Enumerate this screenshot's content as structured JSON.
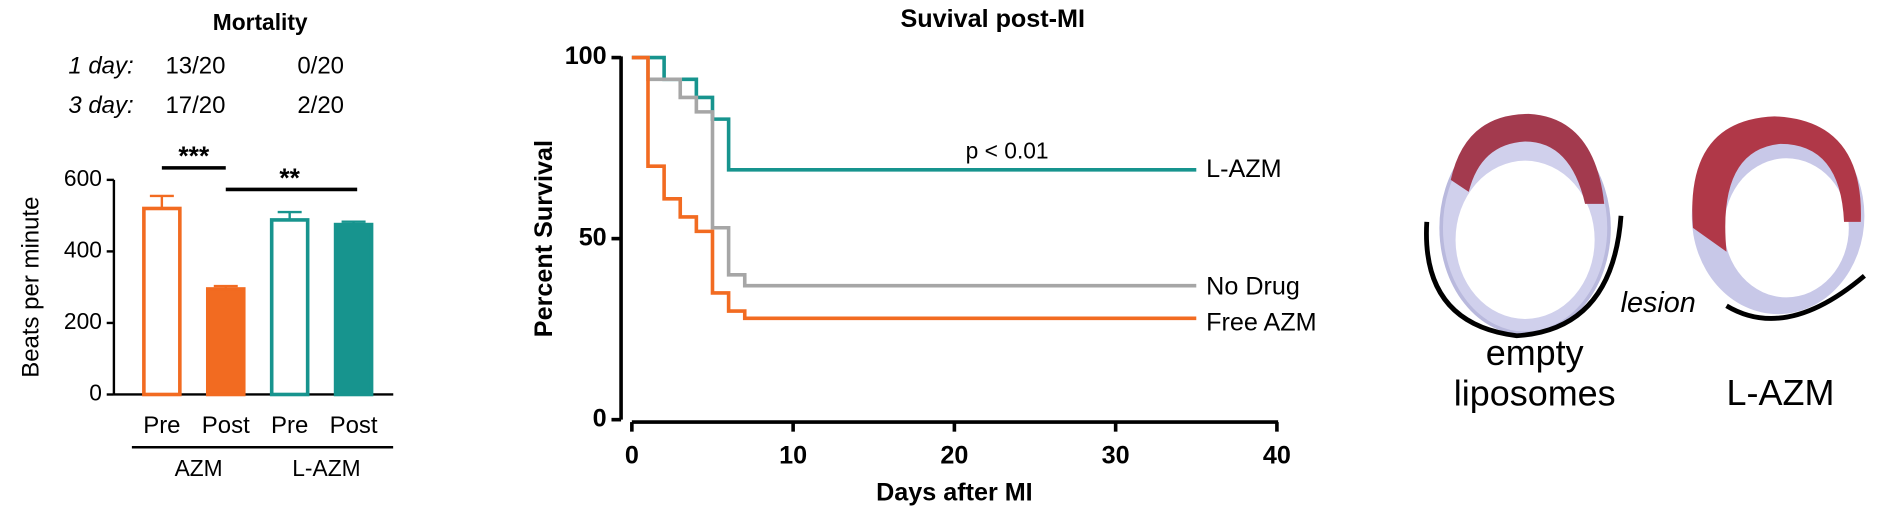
{
  "mortality": {
    "title": "Mortality",
    "colors": [
      "#f26b21",
      "#17948e"
    ],
    "rows": [
      {
        "label": "1 day:",
        "values": [
          "13/20",
          "0/20"
        ]
      },
      {
        "label": "3 day:",
        "values": [
          "17/20",
          "2/20"
        ]
      }
    ]
  },
  "chart_data": [
    {
      "type": "bar",
      "ylabel": "Beats per minute",
      "categories": [
        "Pre",
        "Post",
        "Pre",
        "Post"
      ],
      "groups": [
        "AZM",
        "L-AZM"
      ],
      "values": [
        520,
        295,
        488,
        475
      ],
      "errors": [
        35,
        8,
        22,
        8
      ],
      "colors": [
        "#f26b21",
        "#f26b21",
        "#17948e",
        "#17948e"
      ],
      "filled": [
        false,
        true,
        false,
        true
      ],
      "ylim": [
        0,
        600
      ],
      "yticks": [
        0,
        200,
        400,
        600
      ],
      "annotations": [
        {
          "text": "***",
          "between": [
            0,
            1
          ]
        },
        {
          "text": "**",
          "between": [
            1,
            3
          ]
        }
      ]
    },
    {
      "type": "line",
      "step": true,
      "title": "Suvival post-MI",
      "xlabel": "Days after MI",
      "ylabel": "Percent Survival",
      "annotation": "p < 0.01",
      "xlim": [
        0,
        40
      ],
      "xticks": [
        0,
        10,
        20,
        30,
        40
      ],
      "ylim": [
        0,
        100
      ],
      "yticks": [
        0,
        50,
        100
      ],
      "series": [
        {
          "name": "L-AZM",
          "color": "#17948e",
          "x": [
            0,
            2,
            4,
            5,
            6,
            35
          ],
          "values": [
            100,
            94,
            89,
            83,
            69,
            69
          ]
        },
        {
          "name": "No Drug",
          "color": "#a6a6a6",
          "x": [
            0,
            1,
            3,
            4,
            5,
            6,
            7,
            35
          ],
          "values": [
            100,
            94,
            89,
            85,
            53,
            40,
            37,
            37
          ]
        },
        {
          "name": "Free AZM",
          "color": "#f26b21",
          "x": [
            0,
            1,
            2,
            3,
            4,
            5,
            6,
            7,
            35
          ],
          "values": [
            100,
            70,
            61,
            56,
            52,
            35,
            30,
            28,
            28
          ]
        }
      ]
    }
  ],
  "histology": {
    "labels": [
      "empty liposomes",
      "L-AZM"
    ],
    "lesion": "lesion"
  }
}
